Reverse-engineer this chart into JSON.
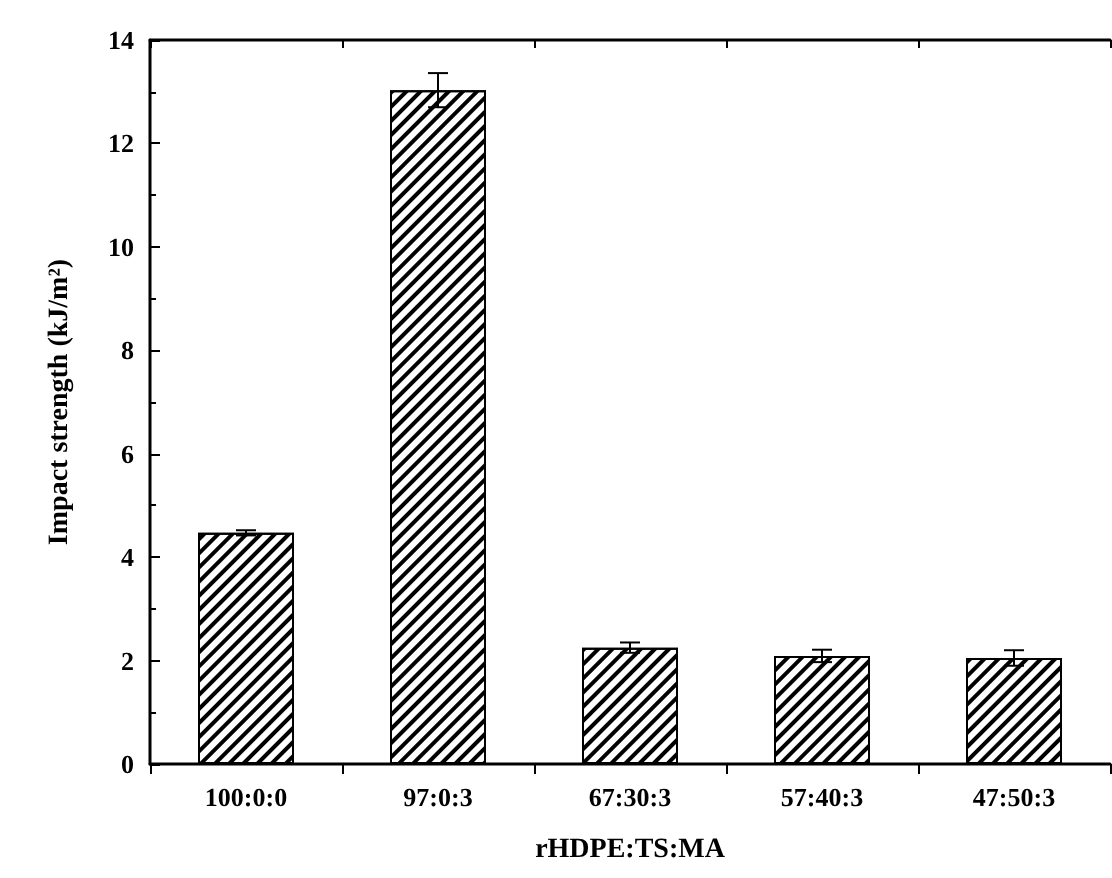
{
  "chart_data": {
    "type": "bar",
    "xlabel": "rHDPE:TS:MA",
    "ylabel": "Impact strength (kJ/m²)",
    "categories": [
      "100:0:0",
      "97:0:3",
      "67:30:3",
      "57:40:3",
      "47:50:3"
    ],
    "values": [
      4.47,
      13.03,
      2.25,
      2.09,
      2.05
    ],
    "errors": [
      0.05,
      0.33,
      0.1,
      0.12,
      0.15
    ],
    "color": "#ffffff",
    "ylim": [
      0,
      14
    ],
    "yticks": [
      0,
      2,
      4,
      6,
      8,
      10,
      12,
      14
    ],
    "grid": false
  }
}
